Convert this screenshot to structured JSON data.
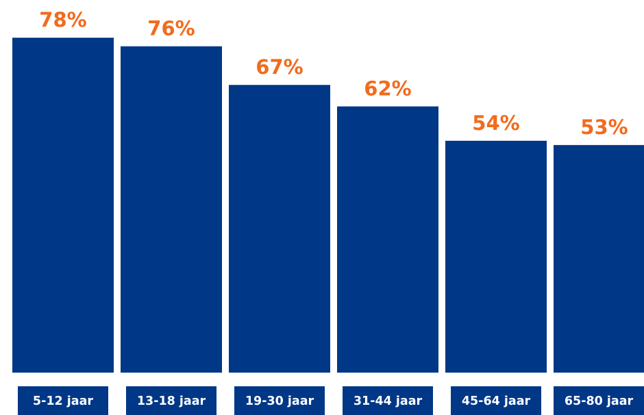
{
  "chart_data": {
    "type": "bar",
    "categories": [
      "5-12 jaar",
      "13-18 jaar",
      "19-30 jaar",
      "31-44 jaar",
      "45-64 jaar",
      "65-80 jaar"
    ],
    "values": [
      78,
      76,
      67,
      62,
      54,
      53
    ],
    "value_labels": [
      "78%",
      "76%",
      "67%",
      "62%",
      "54%",
      "53%"
    ],
    "unit": "%",
    "title": "",
    "xlabel": "",
    "ylabel": "",
    "ylim": [
      0,
      100
    ],
    "grid": false,
    "bar_color": "#003786",
    "label_box_color": "#003786",
    "value_label_color": "#f26b1d",
    "category_label_color": "#ffffff"
  }
}
